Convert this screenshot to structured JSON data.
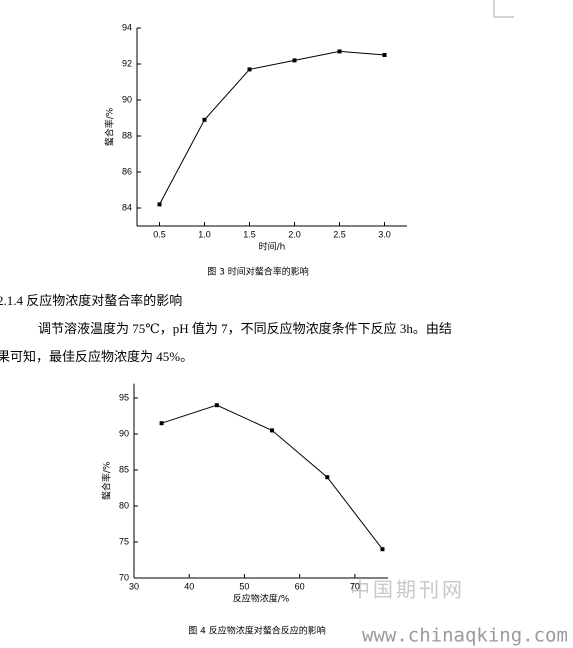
{
  "chart_data": [
    {
      "type": "line",
      "y_label": "螯合率/%",
      "x_label": "时间/h",
      "x": [
        0.5,
        1.0,
        1.5,
        2.0,
        2.5,
        3.0
      ],
      "series": [
        {
          "color": "#000000",
          "values": [
            84.2,
            88.9,
            91.7,
            92.2,
            92.7,
            92.5
          ]
        }
      ],
      "xlim": [
        0.25,
        3.25
      ],
      "ylim": [
        83,
        94
      ],
      "xticks": [
        0.5,
        {
          "value": 1.0,
          "label": "1.0"
        },
        1.5,
        {
          "value": 2.0,
          "label": "2.0"
        },
        2.5,
        {
          "value": 3.0,
          "label": "3.0"
        }
      ],
      "yticks": [
        84,
        86,
        88,
        90,
        92,
        94
      ]
    },
    {
      "type": "line",
      "y_label": "螯合率/%",
      "x_label": "反应物浓度/%",
      "x": [
        35,
        45,
        55,
        65,
        75
      ],
      "series": [
        {
          "color": "#000000",
          "values": [
            91.5,
            94,
            90.5,
            84,
            74
          ]
        }
      ],
      "xlim": [
        30,
        76
      ],
      "ylim": [
        70,
        97
      ],
      "xticks": [
        30,
        40,
        50,
        60,
        70
      ],
      "yticks": [
        70,
        75,
        80,
        85,
        90,
        95
      ]
    }
  ],
  "document": {
    "caption_1": "图 3  时间对螯合率的影响",
    "heading": "2.1.4  反应物浓度对螯合率的影响",
    "paragraph": [
      "调节溶液温度为 75℃，pH 值为 7，不同反应物浓度条件下反应 3h。由结",
      "果可知，最佳反应物浓度为 45%。"
    ],
    "caption_2": "图 4  反应物浓度对螯合反应的影响"
  },
  "watermark": {
    "logo": "中国期刊网",
    "url": "www.chinaqking.com"
  }
}
